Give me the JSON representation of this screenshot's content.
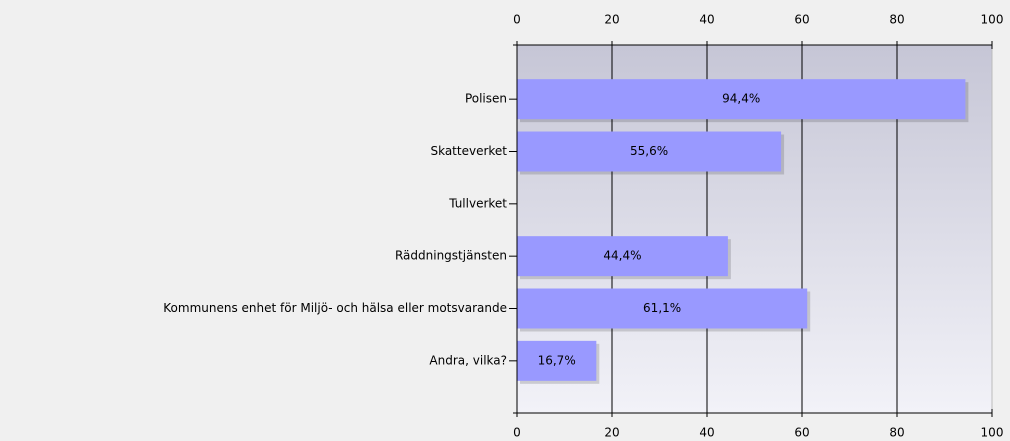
{
  "chart_data": {
    "type": "bar",
    "orientation": "horizontal",
    "categories": [
      "Polisen",
      "Skatteverket",
      "Tullverket",
      "Räddningstjänsten",
      "Kommunens enhet för Miljö- och hälsa eller motsvarande",
      "Andra, vilka?"
    ],
    "values": [
      94.4,
      55.6,
      null,
      44.4,
      61.1,
      16.7
    ],
    "value_labels": [
      "94,4%",
      "55,6%",
      null,
      "44,4%",
      "61,1%",
      "16,7%"
    ],
    "color": "#9999ff",
    "xlim": [
      0,
      100
    ],
    "xticks": [
      0,
      20,
      40,
      60,
      80,
      100
    ],
    "grid": true
  }
}
